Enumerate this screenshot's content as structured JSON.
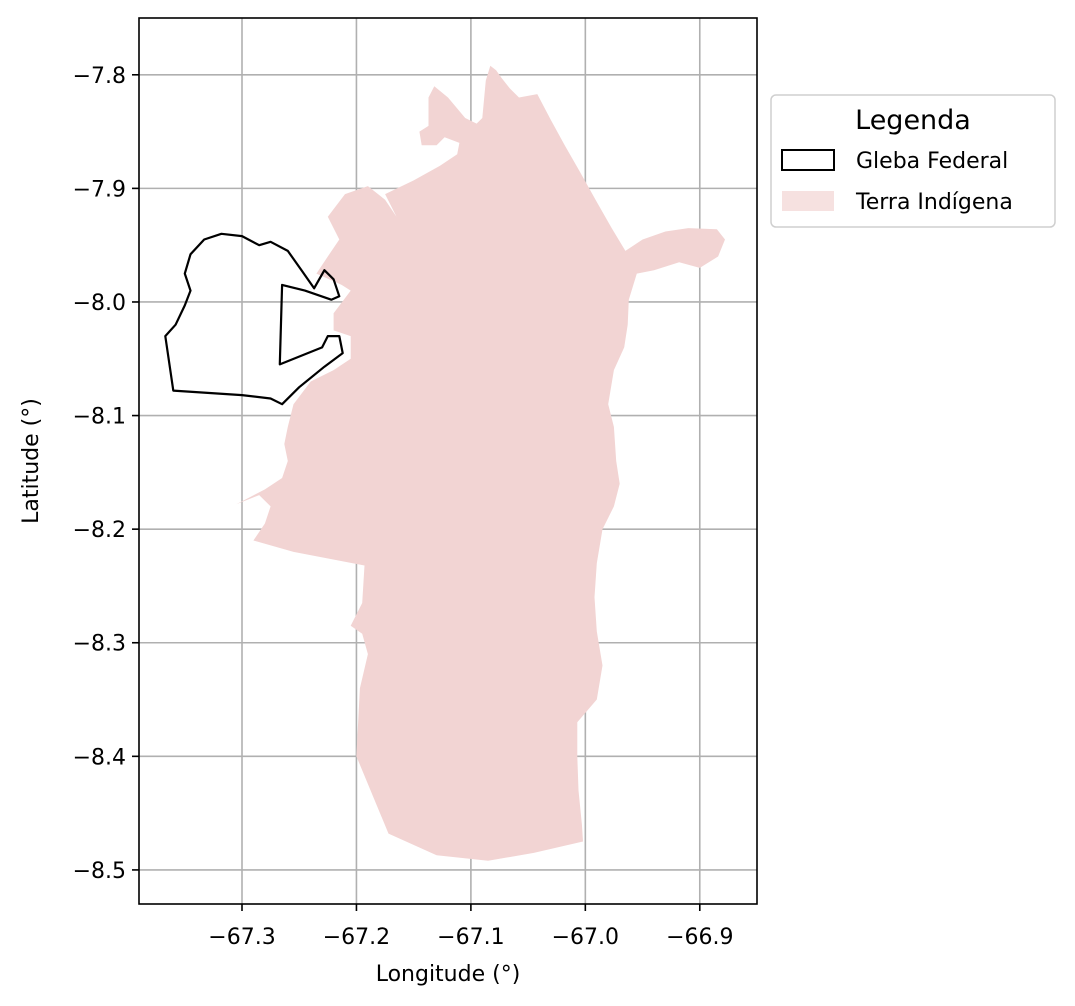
{
  "chart_data": {
    "type": "map",
    "xlabel": "Longitude (°)",
    "ylabel": "Latitude (°)",
    "xlim": [
      -67.39,
      -66.85
    ],
    "ylim": [
      -8.53,
      -7.75
    ],
    "xticks": [
      -67.3,
      -67.2,
      -67.1,
      -67.0,
      -66.9
    ],
    "yticks": [
      -7.8,
      -7.9,
      -8.0,
      -8.1,
      -8.2,
      -8.3,
      -8.4,
      -8.5
    ],
    "xtick_labels": [
      "−67.3",
      "−67.2",
      "−67.1",
      "−67.0",
      "−66.9"
    ],
    "ytick_labels": [
      "−7.8",
      "−7.9",
      "−8.0",
      "−8.1",
      "−8.2",
      "−8.3",
      "−8.4",
      "−8.5"
    ],
    "grid": true,
    "legend": {
      "title": "Legenda",
      "placement": "outside-upper-right",
      "entries": [
        {
          "label": "Gleba Federal",
          "style": "outline",
          "color": "#000000"
        },
        {
          "label": "Terra Indígena",
          "style": "fill",
          "color": "#f2d4d3"
        }
      ]
    },
    "layers": [
      {
        "name": "Terra Indígena",
        "fill": "#f2d4d3",
        "polygons": [
          [
            [
              -67.083,
              -7.792
            ],
            [
              -67.078,
              -7.796
            ],
            [
              -67.073,
              -7.803
            ],
            [
              -67.066,
              -7.812
            ],
            [
              -67.058,
              -7.82
            ],
            [
              -67.042,
              -7.817
            ],
            [
              -67.03,
              -7.84
            ],
            [
              -67.018,
              -7.862
            ],
            [
              -67.005,
              -7.885
            ],
            [
              -66.99,
              -7.912
            ],
            [
              -66.977,
              -7.935
            ],
            [
              -66.965,
              -7.955
            ],
            [
              -66.95,
              -7.945
            ],
            [
              -66.93,
              -7.938
            ],
            [
              -66.91,
              -7.935
            ],
            [
              -66.885,
              -7.936
            ],
            [
              -66.878,
              -7.945
            ],
            [
              -66.884,
              -7.96
            ],
            [
              -66.9,
              -7.97
            ],
            [
              -66.918,
              -7.965
            ],
            [
              -66.94,
              -7.972
            ],
            [
              -66.955,
              -7.975
            ],
            [
              -66.962,
              -7.998
            ],
            [
              -66.963,
              -8.02
            ],
            [
              -66.966,
              -8.04
            ],
            [
              -66.975,
              -8.06
            ],
            [
              -66.98,
              -8.09
            ],
            [
              -66.975,
              -8.11
            ],
            [
              -66.973,
              -8.14
            ],
            [
              -66.97,
              -8.16
            ],
            [
              -66.975,
              -8.18
            ],
            [
              -66.985,
              -8.2
            ],
            [
              -66.99,
              -8.23
            ],
            [
              -66.992,
              -8.26
            ],
            [
              -66.99,
              -8.29
            ],
            [
              -66.985,
              -8.32
            ],
            [
              -66.99,
              -8.35
            ],
            [
              -67.007,
              -8.37
            ],
            [
              -67.007,
              -8.4
            ],
            [
              -67.006,
              -8.43
            ],
            [
              -67.003,
              -8.46
            ],
            [
              -67.002,
              -8.475
            ],
            [
              -67.045,
              -8.485
            ],
            [
              -67.085,
              -8.492
            ],
            [
              -67.13,
              -8.487
            ],
            [
              -67.172,
              -8.468
            ],
            [
              -67.2,
              -8.4
            ],
            [
              -67.197,
              -8.34
            ],
            [
              -67.19,
              -8.31
            ],
            [
              -67.195,
              -8.292
            ],
            [
              -67.205,
              -8.285
            ],
            [
              -67.195,
              -8.265
            ],
            [
              -67.193,
              -8.232
            ],
            [
              -67.255,
              -8.22
            ],
            [
              -67.29,
              -8.21
            ],
            [
              -67.28,
              -8.195
            ],
            [
              -67.275,
              -8.18
            ],
            [
              -67.285,
              -8.17
            ],
            [
              -67.305,
              -8.178
            ],
            [
              -67.28,
              -8.165
            ],
            [
              -67.265,
              -8.155
            ],
            [
              -67.26,
              -8.14
            ],
            [
              -67.263,
              -8.125
            ],
            [
              -67.26,
              -8.11
            ],
            [
              -67.255,
              -8.09
            ],
            [
              -67.24,
              -8.07
            ],
            [
              -67.22,
              -8.06
            ],
            [
              -67.205,
              -8.05
            ],
            [
              -67.205,
              -8.03
            ],
            [
              -67.22,
              -8.025
            ],
            [
              -67.22,
              -8.01
            ],
            [
              -67.205,
              -7.99
            ],
            [
              -67.213,
              -7.985
            ],
            [
              -67.235,
              -7.975
            ],
            [
              -67.225,
              -7.96
            ],
            [
              -67.215,
              -7.945
            ],
            [
              -67.225,
              -7.925
            ],
            [
              -67.21,
              -7.905
            ],
            [
              -67.19,
              -7.898
            ],
            [
              -67.175,
              -7.91
            ],
            [
              -67.165,
              -7.925
            ],
            [
              -67.175,
              -7.905
            ],
            [
              -67.15,
              -7.893
            ],
            [
              -67.127,
              -7.88
            ],
            [
              -67.112,
              -7.87
            ],
            [
              -67.11,
              -7.86
            ],
            [
              -67.123,
              -7.855
            ],
            [
              -67.13,
              -7.862
            ],
            [
              -67.143,
              -7.862
            ],
            [
              -67.145,
              -7.85
            ],
            [
              -67.137,
              -7.845
            ],
            [
              -67.137,
              -7.82
            ],
            [
              -67.132,
              -7.81
            ],
            [
              -67.12,
              -7.82
            ],
            [
              -67.105,
              -7.838
            ],
            [
              -67.095,
              -7.843
            ],
            [
              -67.09,
              -7.838
            ],
            [
              -67.087,
              -7.805
            ]
          ]
        ]
      },
      {
        "name": "Gleba Federal",
        "stroke": "#000000",
        "polygons": [
          [
            [
              -67.367,
              -8.03
            ],
            [
              -67.358,
              -8.02
            ],
            [
              -67.35,
              -8.003
            ],
            [
              -67.345,
              -7.99
            ],
            [
              -67.35,
              -7.975
            ],
            [
              -67.345,
              -7.958
            ],
            [
              -67.333,
              -7.945
            ],
            [
              -67.318,
              -7.94
            ],
            [
              -67.3,
              -7.942
            ],
            [
              -67.285,
              -7.95
            ],
            [
              -67.275,
              -7.947
            ],
            [
              -67.26,
              -7.955
            ],
            [
              -67.248,
              -7.972
            ],
            [
              -67.237,
              -7.988
            ],
            [
              -67.228,
              -7.972
            ],
            [
              -67.22,
              -7.98
            ],
            [
              -67.215,
              -7.995
            ],
            [
              -67.222,
              -7.998
            ],
            [
              -67.245,
              -7.99
            ],
            [
              -67.265,
              -7.985
            ],
            [
              -67.267,
              -8.055
            ],
            [
              -67.23,
              -8.04
            ],
            [
              -67.225,
              -8.03
            ],
            [
              -67.215,
              -8.03
            ],
            [
              -67.212,
              -8.045
            ],
            [
              -67.228,
              -8.057
            ],
            [
              -67.25,
              -8.075
            ],
            [
              -67.265,
              -8.09
            ],
            [
              -67.275,
              -8.085
            ],
            [
              -67.3,
              -8.082
            ],
            [
              -67.36,
              -8.078
            ]
          ]
        ]
      }
    ]
  }
}
